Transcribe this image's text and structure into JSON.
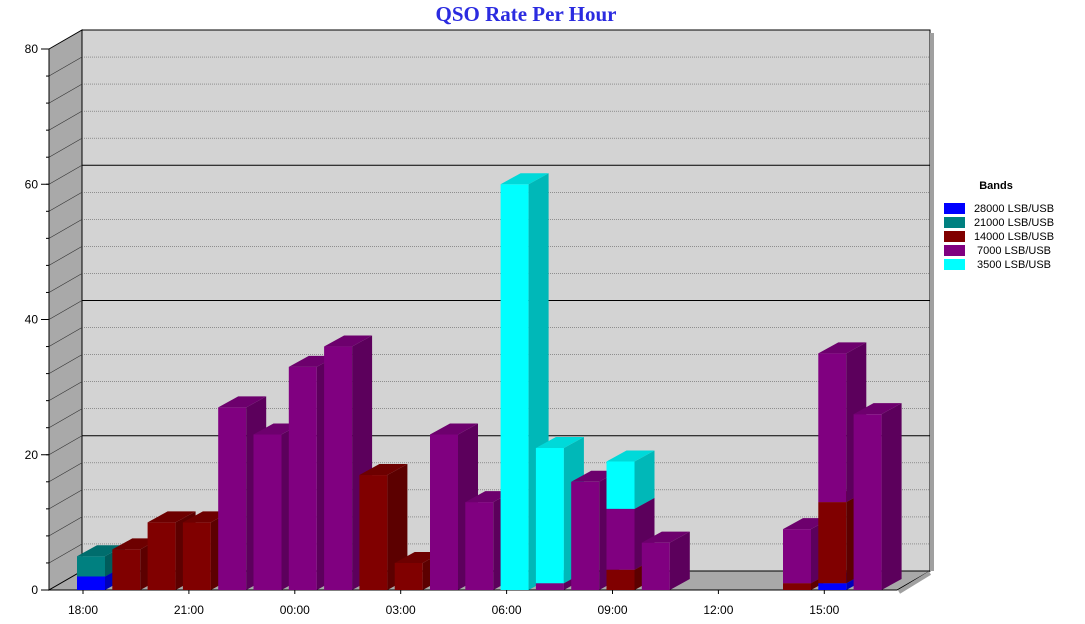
{
  "chart_data": {
    "type": "bar",
    "stacked": true,
    "three_d": true,
    "title": "QSO Rate Per Hour",
    "ylim": [
      0,
      80
    ],
    "y_ticks": [
      "0",
      "20",
      "40",
      "60",
      "80"
    ],
    "x_ticks": [
      "18:00",
      "21:00",
      "00:00",
      "03:00",
      "06:00",
      "09:00",
      "12:00",
      "15:00"
    ],
    "legend_title": "Bands",
    "legend_position": "right",
    "grid": true,
    "categories": [
      "18",
      "19",
      "20",
      "21",
      "22",
      "23",
      "00",
      "01",
      "02",
      "03",
      "04",
      "05",
      "06",
      "07",
      "08",
      "09",
      "10",
      "11",
      "12",
      "13",
      "14",
      "15",
      "16"
    ],
    "series": [
      {
        "name": "28000 LSB/USB",
        "color": "#0000ff",
        "values": [
          2,
          0,
          0,
          0,
          0,
          0,
          0,
          0,
          0,
          0,
          0,
          0,
          0,
          0,
          0,
          0,
          0,
          0,
          0,
          0,
          0,
          1,
          0
        ]
      },
      {
        "name": "21000 LSB/USB",
        "color": "#008080",
        "values": [
          3,
          0,
          0,
          0,
          0,
          0,
          0,
          0,
          0,
          0,
          0,
          0,
          0,
          0,
          0,
          0,
          0,
          0,
          0,
          0,
          0,
          0,
          0
        ]
      },
      {
        "name": "14000 LSB/USB",
        "color": "#800000",
        "values": [
          0,
          6,
          10,
          10,
          0,
          0,
          0,
          0,
          17,
          4,
          0,
          0,
          0,
          0,
          0,
          3,
          0,
          0,
          0,
          0,
          1,
          12,
          0
        ]
      },
      {
        "name": "7000 LSB/USB",
        "color": "#800080",
        "values": [
          0,
          0,
          0,
          0,
          27,
          23,
          33,
          36,
          0,
          0,
          23,
          13,
          0,
          1,
          16,
          9,
          7,
          0,
          0,
          0,
          8,
          22,
          26
        ]
      },
      {
        "name": "3500 LSB/USB",
        "color": "#00ffff",
        "values": [
          0,
          0,
          0,
          0,
          0,
          0,
          0,
          0,
          0,
          0,
          0,
          0,
          60,
          20,
          0,
          7,
          0,
          0,
          0,
          0,
          0,
          0,
          0
        ]
      }
    ]
  }
}
